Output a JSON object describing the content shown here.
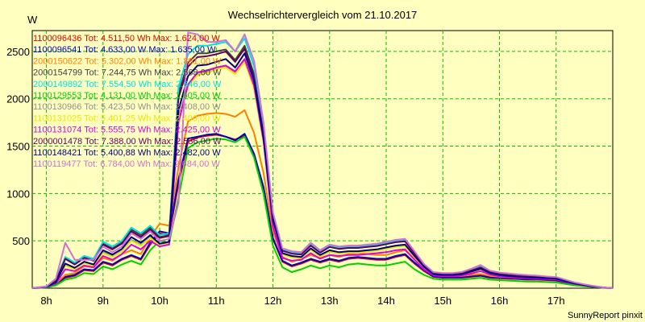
{
  "chart_data": {
    "type": "line",
    "title": "Wechselrichtervergleich vom 21.10.2017",
    "y_unit": "W",
    "footer": "SunnyReport pinxit",
    "xlim": [
      7.75,
      18.0
    ],
    "ylim": [
      0,
      2720
    ],
    "y_ticks": [
      500,
      1000,
      1500,
      2000,
      2500
    ],
    "x_ticks": [
      8,
      9,
      10,
      11,
      12,
      13,
      14,
      15,
      16,
      17
    ],
    "x_tick_labels": [
      "8h",
      "9h",
      "10h",
      "11h",
      "12h",
      "13h",
      "14h",
      "15h",
      "16h",
      "17h"
    ],
    "grid": true,
    "x": [
      7.75,
      8.0,
      8.167,
      8.333,
      8.5,
      8.667,
      8.833,
      9.0,
      9.167,
      9.333,
      9.5,
      9.667,
      9.833,
      10.0,
      10.167,
      10.333,
      10.5,
      10.667,
      10.833,
      11.0,
      11.167,
      11.333,
      11.5,
      11.667,
      11.833,
      12.0,
      12.167,
      12.333,
      12.5,
      12.667,
      12.833,
      13.0,
      13.167,
      13.333,
      13.5,
      13.667,
      13.833,
      14.0,
      14.167,
      14.333,
      14.5,
      14.667,
      14.833,
      15.0,
      15.167,
      15.333,
      15.5,
      15.667,
      15.833,
      16.0,
      16.167,
      16.333,
      16.5,
      16.667,
      16.833,
      17.0,
      17.167,
      17.333,
      17.5,
      17.667,
      17.833,
      18.0
    ],
    "series": [
      {
        "name": "1100096436 Tot: 4.511,50 Wh Max: 1.624,00 W",
        "color": "#e00000",
        "values": [
          0,
          10,
          40,
          110,
          130,
          190,
          180,
          270,
          240,
          300,
          340,
          300,
          460,
          580,
          560,
          1100,
          1550,
          1590,
          1610,
          1620,
          1600,
          1570,
          1610,
          1400,
          1050,
          520,
          280,
          230,
          260,
          300,
          270,
          300,
          280,
          310,
          320,
          310,
          300,
          300,
          330,
          350,
          260,
          180,
          120,
          110,
          110,
          110,
          120,
          130,
          110,
          105,
          100,
          95,
          90,
          90,
          85,
          80,
          60,
          40,
          25,
          15,
          5,
          0
        ]
      },
      {
        "name": "1100096541 Tot: 4.633,00 W Max: 1.635,00 W",
        "color": "#0000c0",
        "values": [
          0,
          12,
          45,
          120,
          140,
          200,
          190,
          280,
          250,
          310,
          350,
          310,
          480,
          600,
          580,
          1150,
          1580,
          1600,
          1620,
          1630,
          1600,
          1560,
          1630,
          1420,
          1070,
          530,
          290,
          240,
          270,
          310,
          280,
          310,
          290,
          320,
          330,
          320,
          310,
          310,
          340,
          360,
          270,
          190,
          125,
          115,
          115,
          115,
          125,
          135,
          115,
          110,
          105,
          100,
          95,
          95,
          90,
          85,
          62,
          42,
          26,
          16,
          5,
          0
        ]
      },
      {
        "name": "2000150622 Tot: 5.302,00 Wh Max: 1.881,00 W",
        "color": "#ff8000",
        "values": [
          0,
          12,
          50,
          140,
          160,
          230,
          220,
          320,
          290,
          360,
          400,
          360,
          540,
          680,
          660,
          1280,
          1760,
          1820,
          1840,
          1850,
          1840,
          1810,
          1880,
          1640,
          1220,
          600,
          330,
          280,
          310,
          350,
          320,
          350,
          330,
          360,
          370,
          360,
          350,
          350,
          380,
          400,
          310,
          220,
          140,
          130,
          130,
          130,
          140,
          150,
          130,
          120,
          115,
          110,
          105,
          105,
          100,
          95,
          70,
          48,
          30,
          18,
          6,
          0
        ]
      },
      {
        "name": "2000154799 Tot: 7.244,75 Wh Max: 2.568,00 W",
        "color": "#404040",
        "values": [
          0,
          18,
          80,
          320,
          260,
          330,
          300,
          470,
          420,
          480,
          620,
          560,
          640,
          540,
          560,
          2060,
          2380,
          2480,
          2480,
          2500,
          2520,
          2410,
          2560,
          2260,
          1650,
          760,
          400,
          370,
          360,
          460,
          380,
          440,
          420,
          430,
          430,
          440,
          450,
          470,
          490,
          500,
          370,
          240,
          160,
          150,
          150,
          160,
          190,
          220,
          170,
          150,
          140,
          130,
          125,
          120,
          115,
          110,
          80,
          55,
          35,
          20,
          8,
          0
        ]
      },
      {
        "name": "2000149892 Tot: 7.554,50 Wh Max: 2.646,00 W",
        "color": "#00e0e0",
        "values": [
          0,
          20,
          90,
          330,
          270,
          340,
          310,
          490,
          440,
          500,
          640,
          580,
          660,
          560,
          580,
          2120,
          2470,
          2560,
          2560,
          2580,
          2600,
          2500,
          2640,
          2340,
          1710,
          790,
          410,
          380,
          370,
          470,
          390,
          450,
          430,
          440,
          440,
          450,
          460,
          480,
          500,
          510,
          380,
          250,
          165,
          155,
          155,
          165,
          200,
          240,
          180,
          160,
          150,
          140,
          135,
          130,
          120,
          115,
          85,
          58,
          38,
          22,
          8,
          0
        ]
      },
      {
        "name": "1100129553 Tot: 4.131,00 Wh Max: 1.605,00 W",
        "color": "#00d000",
        "values": [
          0,
          8,
          30,
          90,
          110,
          160,
          150,
          230,
          200,
          250,
          290,
          250,
          400,
          500,
          480,
          950,
          1480,
          1540,
          1560,
          1580,
          1570,
          1540,
          1600,
          1380,
          1000,
          450,
          220,
          170,
          200,
          240,
          210,
          240,
          220,
          250,
          260,
          250,
          240,
          240,
          260,
          280,
          200,
          140,
          100,
          90,
          90,
          90,
          100,
          110,
          90,
          85,
          80,
          75,
          70,
          70,
          65,
          60,
          45,
          30,
          20,
          12,
          4,
          0
        ]
      },
      {
        "name": "1100130966 Tot: 5.423,50 Wh Max: 2.408,00 W",
        "color": "#909090",
        "values": [
          0,
          14,
          60,
          250,
          210,
          270,
          240,
          380,
          340,
          400,
          510,
          460,
          540,
          460,
          480,
          1800,
          2150,
          2270,
          2290,
          2330,
          2350,
          2280,
          2400,
          2130,
          1560,
          700,
          360,
          330,
          320,
          410,
          340,
          390,
          370,
          380,
          380,
          390,
          400,
          420,
          440,
          450,
          330,
          220,
          145,
          135,
          135,
          145,
          170,
          200,
          155,
          135,
          125,
          118,
          112,
          108,
          104,
          100,
          72,
          50,
          32,
          18,
          7,
          0
        ]
      },
      {
        "name": "1100131025 Tot: 5.401,25 Wh Max: 2.400,00 W",
        "color": "#e8e800",
        "values": [
          0,
          14,
          58,
          240,
          200,
          265,
          235,
          370,
          330,
          390,
          500,
          450,
          530,
          450,
          470,
          1780,
          2130,
          2250,
          2270,
          2310,
          2330,
          2260,
          2390,
          2110,
          1540,
          690,
          355,
          325,
          315,
          405,
          335,
          385,
          365,
          375,
          375,
          385,
          395,
          415,
          435,
          445,
          325,
          215,
          142,
          132,
          132,
          142,
          168,
          198,
          152,
          132,
          122,
          116,
          110,
          106,
          102,
          98,
          70,
          48,
          31,
          17,
          7,
          0
        ]
      },
      {
        "name": "1100131074 Tot: 5.555,75 Wh Max: 2.425,00 W",
        "color": "#e000e0",
        "values": [
          0,
          12,
          50,
          200,
          180,
          240,
          220,
          340,
          300,
          360,
          460,
          410,
          500,
          440,
          460,
          1750,
          2150,
          2280,
          2300,
          2330,
          2350,
          2290,
          2420,
          2140,
          1560,
          650,
          320,
          290,
          300,
          370,
          310,
          350,
          340,
          350,
          350,
          360,
          370,
          380,
          400,
          410,
          300,
          200,
          135,
          125,
          125,
          135,
          155,
          180,
          145,
          125,
          118,
          110,
          105,
          100,
          95,
          92,
          66,
          45,
          29,
          16,
          6,
          0
        ]
      },
      {
        "name": "2000001478 Tot: 7.388,00 Wh Max: 2.536,00 W",
        "color": "#600060",
        "values": [
          0,
          16,
          75,
          310,
          250,
          320,
          290,
          460,
          410,
          470,
          600,
          540,
          620,
          530,
          550,
          2010,
          2340,
          2440,
          2450,
          2470,
          2500,
          2390,
          2530,
          2230,
          1630,
          750,
          395,
          365,
          355,
          450,
          375,
          435,
          415,
          425,
          425,
          435,
          445,
          465,
          485,
          495,
          365,
          235,
          158,
          148,
          148,
          158,
          186,
          216,
          168,
          148,
          138,
          128,
          123,
          118,
          113,
          108,
          78,
          53,
          34,
          20,
          8,
          0
        ]
      },
      {
        "name": "1100148421 Tot: 5.400,88 Wh Max: 2.482,00 W",
        "color": "#000080",
        "values": [
          0,
          14,
          62,
          260,
          215,
          280,
          250,
          400,
          355,
          415,
          540,
          480,
          560,
          470,
          490,
          1880,
          2240,
          2350,
          2360,
          2390,
          2420,
          2330,
          2480,
          2190,
          1590,
          720,
          370,
          340,
          330,
          420,
          350,
          400,
          380,
          390,
          390,
          400,
          410,
          430,
          450,
          460,
          340,
          225,
          148,
          138,
          138,
          148,
          175,
          205,
          158,
          138,
          128,
          120,
          115,
          110,
          105,
          100,
          73,
          50,
          32,
          18,
          7,
          0
        ]
      },
      {
        "name": "1100119477 Tot: 6.784,00 Wh Max: 2.684,00 W",
        "color": "#d070d0",
        "values": [
          0,
          18,
          100,
          480,
          300,
          300,
          300,
          440,
          380,
          440,
          580,
          520,
          600,
          500,
          520,
          900,
          2700,
          2680,
          2600,
          2600,
          2620,
          2500,
          2680,
          2400,
          1750,
          800,
          420,
          390,
          380,
          480,
          400,
          460,
          440,
          450,
          450,
          460,
          470,
          490,
          510,
          520,
          390,
          255,
          170,
          160,
          160,
          170,
          205,
          245,
          185,
          165,
          155,
          145,
          138,
          133,
          123,
          118,
          88,
          60,
          40,
          23,
          8,
          0
        ]
      }
    ]
  }
}
